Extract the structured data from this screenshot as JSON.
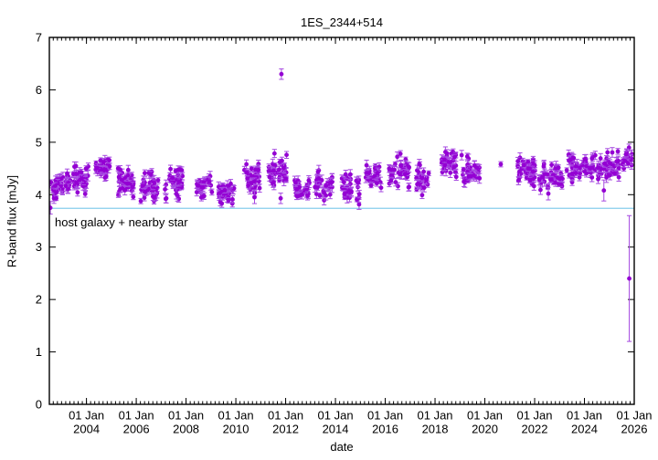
{
  "chart_data": {
    "type": "scatter",
    "title": "1ES_2344+514",
    "xlabel": "date",
    "ylabel": "R-band flux [mJy]",
    "xlim": [
      2002.51,
      2026.0
    ],
    "ylim": [
      0,
      7
    ],
    "y_ticks": [
      0,
      1,
      2,
      3,
      4,
      5,
      6,
      7
    ],
    "x_minor_step_years": 0.1666667,
    "x_tick_labels": [
      {
        "year": 2004,
        "line1": "01 Jan",
        "line2": "2004"
      },
      {
        "year": 2006,
        "line1": "01 Jan",
        "line2": "2006"
      },
      {
        "year": 2008,
        "line1": "01 Jan",
        "line2": "2008"
      },
      {
        "year": 2010,
        "line1": "01 Jan",
        "line2": "2010"
      },
      {
        "year": 2012,
        "line1": "01 Jan",
        "line2": "2012"
      },
      {
        "year": 2014,
        "line1": "01 Jan",
        "line2": "2014"
      },
      {
        "year": 2016,
        "line1": "01 Jan",
        "line2": "2016"
      },
      {
        "year": 2018,
        "line1": "01 Jan",
        "line2": "2018"
      },
      {
        "year": 2020,
        "line1": "01 Jan",
        "line2": "2020"
      },
      {
        "year": 2022,
        "line1": "01 Jan",
        "line2": "2022"
      },
      {
        "year": 2024,
        "line1": "01 Jan",
        "line2": "2024"
      },
      {
        "year": 2026,
        "line1": "01 Jan",
        "line2": "2026"
      }
    ],
    "grid": false,
    "legend": "none",
    "marker": {
      "shape": "filled-circle",
      "color": "#9400d3",
      "errorbar_color": "#a64ae0",
      "radius": 2.4
    },
    "reference_line": {
      "value": 3.74,
      "color": "#87ceeb",
      "label": "host galaxy + nearby star"
    },
    "seasonal_clusters": [
      {
        "start": 2002.52,
        "end": 2003.08,
        "mean": 4.15,
        "sigma": 0.1,
        "n": 30
      },
      {
        "start": 2003.15,
        "end": 2003.38,
        "mean": 4.25,
        "sigma": 0.1,
        "n": 13
      },
      {
        "start": 2003.45,
        "end": 2004.08,
        "mean": 4.3,
        "sigma": 0.13,
        "n": 38
      },
      {
        "start": 2004.35,
        "end": 2004.95,
        "mean": 4.5,
        "sigma": 0.12,
        "n": 34
      },
      {
        "start": 2005.27,
        "end": 2005.92,
        "mean": 4.25,
        "sigma": 0.14,
        "n": 38
      },
      {
        "start": 2006.18,
        "end": 2006.9,
        "mean": 4.15,
        "sigma": 0.13,
        "n": 38
      },
      {
        "start": 2007.14,
        "end": 2007.86,
        "mean": 4.25,
        "sigma": 0.15,
        "n": 38
      },
      {
        "start": 2008.4,
        "end": 2009.04,
        "mean": 4.15,
        "sigma": 0.1,
        "n": 32
      },
      {
        "start": 2009.3,
        "end": 2009.95,
        "mean": 4.05,
        "sigma": 0.1,
        "n": 32
      },
      {
        "start": 2010.33,
        "end": 2011.02,
        "mean": 4.3,
        "sigma": 0.13,
        "n": 34
      },
      {
        "start": 2011.32,
        "end": 2012.05,
        "mean": 4.45,
        "sigma": 0.16,
        "n": 38
      },
      {
        "start": 2012.35,
        "end": 2013.0,
        "mean": 4.1,
        "sigma": 0.12,
        "n": 32
      },
      {
        "start": 2013.16,
        "end": 2013.88,
        "mean": 4.2,
        "sigma": 0.14,
        "n": 34
      },
      {
        "start": 2014.26,
        "end": 2014.98,
        "mean": 4.1,
        "sigma": 0.13,
        "n": 34
      },
      {
        "start": 2015.2,
        "end": 2015.86,
        "mean": 4.35,
        "sigma": 0.14,
        "n": 32
      },
      {
        "start": 2016.13,
        "end": 2016.96,
        "mean": 4.45,
        "sigma": 0.15,
        "n": 36
      },
      {
        "start": 2017.22,
        "end": 2017.78,
        "mean": 4.3,
        "sigma": 0.14,
        "n": 28
      },
      {
        "start": 2018.25,
        "end": 2018.88,
        "mean": 4.55,
        "sigma": 0.12,
        "n": 34
      },
      {
        "start": 2019.05,
        "end": 2019.8,
        "mean": 4.45,
        "sigma": 0.15,
        "n": 34
      },
      {
        "start": 2021.26,
        "end": 2022.05,
        "mean": 4.45,
        "sigma": 0.13,
        "n": 40
      },
      {
        "start": 2022.18,
        "end": 2023.15,
        "mean": 4.35,
        "sigma": 0.13,
        "n": 42
      },
      {
        "start": 2023.28,
        "end": 2024.12,
        "mean": 4.5,
        "sigma": 0.12,
        "n": 38
      },
      {
        "start": 2024.2,
        "end": 2025.45,
        "mean": 4.55,
        "sigma": 0.13,
        "n": 52
      },
      {
        "start": 2025.5,
        "end": 2025.92,
        "mean": 4.72,
        "sigma": 0.1,
        "n": 18
      }
    ],
    "highlight_points": [
      {
        "year": 2002.55,
        "value": 3.75,
        "err": 0.12,
        "note": "point at host-galaxy level, left edge"
      },
      {
        "year": 2010.75,
        "value": 3.95,
        "err": 0.12,
        "note": "seasonal low"
      },
      {
        "year": 2011.83,
        "value": 6.3,
        "err": 0.1,
        "note": "bright flare outlier"
      },
      {
        "year": 2011.8,
        "value": 3.93,
        "err": 0.1,
        "note": "seasonal low"
      },
      {
        "year": 2020.64,
        "value": 4.58,
        "err": 0.05,
        "note": "isolated point"
      },
      {
        "year": 2022.55,
        "value": 4.02,
        "err": 0.12,
        "note": "seasonal low"
      },
      {
        "year": 2024.78,
        "value": 4.08,
        "err": 0.2,
        "note": "seasonal low"
      },
      {
        "year": 2025.8,
        "value": 2.4,
        "err": 1.2,
        "note": "faint point, large uncertainty"
      }
    ]
  }
}
